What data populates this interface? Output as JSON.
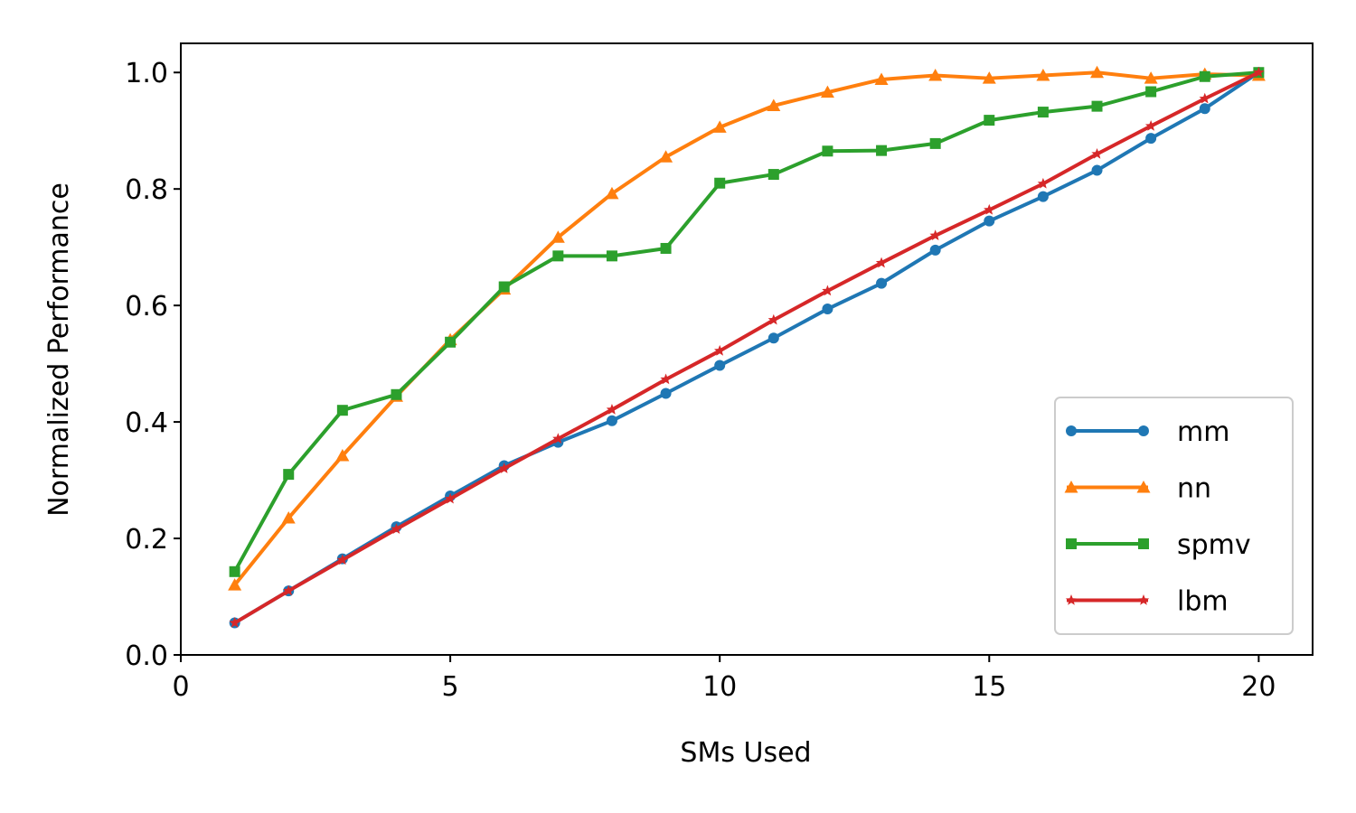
{
  "chart_data": {
    "type": "line",
    "xlabel": "SMs Used",
    "ylabel": "Normalized Performance",
    "xlim": [
      0,
      21
    ],
    "ylim": [
      0,
      1.05
    ],
    "xticks": [
      0,
      5,
      10,
      15,
      20
    ],
    "yticks": [
      0.0,
      0.2,
      0.4,
      0.6,
      0.8,
      1.0
    ],
    "xtick_labels": [
      "0",
      "5",
      "10",
      "15",
      "20"
    ],
    "ytick_labels": [
      "0.0",
      "0.2",
      "0.4",
      "0.6",
      "0.8",
      "1.0"
    ],
    "grid": false,
    "legend_position": "lower-right",
    "x": [
      1,
      2,
      3,
      4,
      5,
      6,
      7,
      8,
      9,
      10,
      11,
      12,
      13,
      14,
      15,
      16,
      17,
      18,
      19,
      20
    ],
    "series": [
      {
        "name": "mm",
        "color": "#1f77b4",
        "marker": "circle",
        "values": [
          0.055,
          0.11,
          0.165,
          0.22,
          0.273,
          0.325,
          0.365,
          0.402,
          0.449,
          0.497,
          0.544,
          0.594,
          0.638,
          0.695,
          0.745,
          0.787,
          0.832,
          0.887,
          0.938,
          1.0
        ]
      },
      {
        "name": "nn",
        "color": "#ff7f0e",
        "marker": "triangle",
        "values": [
          0.12,
          0.235,
          0.342,
          0.444,
          0.541,
          0.628,
          0.717,
          0.792,
          0.855,
          0.906,
          0.943,
          0.966,
          0.988,
          0.995,
          0.99,
          0.995,
          1.0,
          0.99,
          0.997,
          0.995
        ]
      },
      {
        "name": "spmv",
        "color": "#2ca02c",
        "marker": "square",
        "values": [
          0.143,
          0.31,
          0.42,
          0.447,
          0.537,
          0.632,
          0.685,
          0.685,
          0.698,
          0.81,
          0.825,
          0.865,
          0.866,
          0.878,
          0.918,
          0.932,
          0.942,
          0.967,
          0.993,
          1.0
        ]
      },
      {
        "name": "lbm",
        "color": "#d62728",
        "marker": "star",
        "values": [
          0.055,
          0.11,
          0.163,
          0.216,
          0.268,
          0.32,
          0.371,
          0.421,
          0.473,
          0.522,
          0.575,
          0.625,
          0.673,
          0.72,
          0.764,
          0.809,
          0.86,
          0.908,
          0.955,
          1.0
        ]
      }
    ]
  }
}
